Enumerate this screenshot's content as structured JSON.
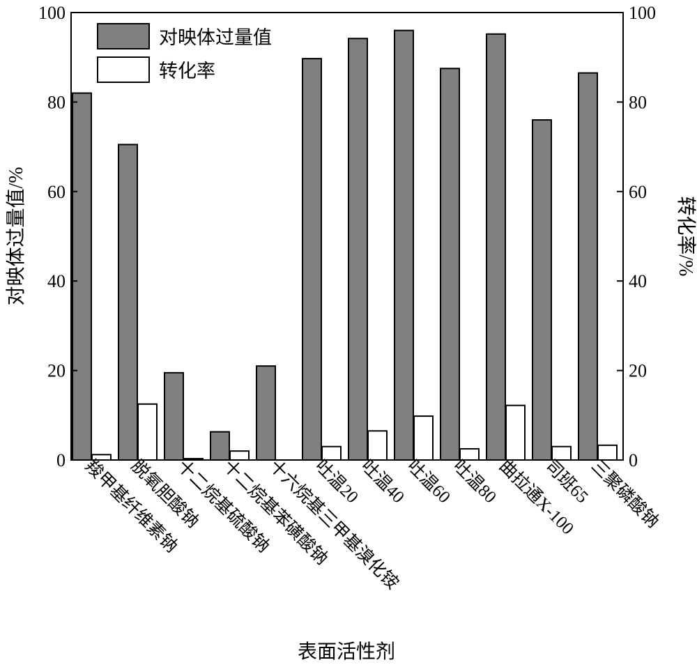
{
  "chart_data": {
    "type": "bar",
    "xlabel": "表面活性剂",
    "ylabel_left": "对映体过量值/%",
    "ylabel_right": "转化率/%",
    "ylim": [
      0,
      100
    ],
    "yticks": [
      "0",
      "20",
      "40",
      "60",
      "80",
      "100"
    ],
    "categories": [
      "羧甲基纤维素钠",
      "脱氧胆酸钠",
      "十二烷基硫酸钠",
      "十二烷基苯磺酸钠",
      "十六烷基三甲基溴化铵",
      "吐温20",
      "吐温40",
      "吐温60",
      "吐温80",
      "曲拉通X-100",
      "司班65",
      "三聚磷酸钠"
    ],
    "series": [
      {
        "name": "对映体过量值",
        "color": "#808080",
        "values": [
          82,
          70.5,
          19.5,
          6.3,
          21,
          89.7,
          94.2,
          96,
          87.5,
          95.2,
          76,
          86.5
        ]
      },
      {
        "name": "转化率",
        "color": "#ffffff",
        "values": [
          1.2,
          12.5,
          0.3,
          2,
          0,
          3,
          6.5,
          9.8,
          2.5,
          12.2,
          3,
          3.3
        ]
      }
    ],
    "legend_position": "top-left",
    "grid": false
  }
}
